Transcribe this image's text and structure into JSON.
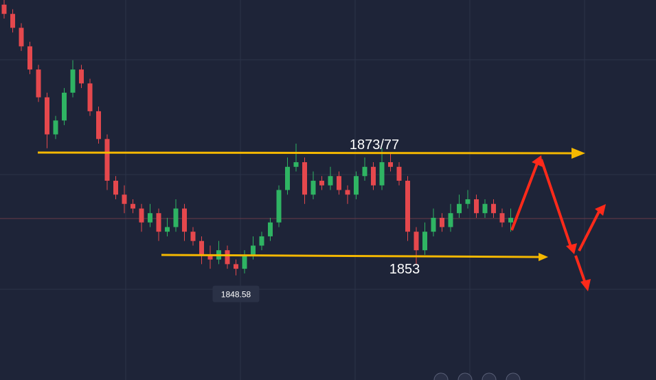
{
  "chart_data": {
    "type": "candlestick",
    "open": [
      1907,
      1905,
      1902,
      1898,
      1893,
      1887,
      1879,
      1882,
      1888,
      1893,
      1890,
      1884,
      1878,
      1869,
      1866,
      1864,
      1863,
      1860,
      1862,
      1858,
      1859,
      1863,
      1858,
      1856,
      1853,
      1852,
      1854,
      1851,
      1850,
      1853,
      1855,
      1857,
      1860,
      1867,
      1872,
      1873,
      1866,
      1869,
      1868,
      1870,
      1867,
      1866,
      1870,
      1872,
      1868,
      1873,
      1872,
      1869,
      1858,
      1854,
      1858,
      1861,
      1859,
      1862,
      1864,
      1865,
      1862,
      1864,
      1862,
      1860
    ],
    "high": [
      1908,
      1906,
      1903,
      1899,
      1894,
      1888,
      1883,
      1889,
      1895,
      1894,
      1891,
      1885,
      1879,
      1870,
      1868,
      1865,
      1864,
      1864,
      1863,
      1861,
      1865,
      1864,
      1859,
      1857,
      1855,
      1856,
      1855,
      1852,
      1854,
      1857,
      1858,
      1861,
      1868,
      1874,
      1877,
      1874,
      1871,
      1870,
      1872,
      1871,
      1868,
      1871,
      1874,
      1873,
      1876,
      1875,
      1873,
      1870,
      1859,
      1860,
      1863,
      1862,
      1864,
      1866,
      1867,
      1866,
      1865,
      1865,
      1863,
      1863
    ],
    "low": [
      1904,
      1901,
      1897,
      1892,
      1886,
      1876,
      1878,
      1881,
      1887,
      1889,
      1883,
      1877,
      1867,
      1865,
      1862,
      1862,
      1858,
      1859,
      1856,
      1857,
      1858,
      1856,
      1855,
      1851,
      1850,
      1851,
      1850,
      1848.58,
      1849,
      1852,
      1854,
      1856,
      1859,
      1866,
      1871,
      1864,
      1865,
      1867,
      1867,
      1866,
      1864,
      1865,
      1869,
      1867,
      1867,
      1871,
      1868,
      1856,
      1851,
      1853,
      1857,
      1858,
      1858,
      1861,
      1863,
      1861,
      1861,
      1861,
      1859,
      1858
    ],
    "close": [
      1905,
      1902,
      1898,
      1893,
      1887,
      1879,
      1882,
      1888,
      1893,
      1890,
      1884,
      1878,
      1869,
      1866,
      1864,
      1863,
      1860,
      1862,
      1858,
      1859,
      1863,
      1858,
      1856,
      1853,
      1852,
      1854,
      1851,
      1850,
      1853,
      1855,
      1857,
      1860,
      1867,
      1872,
      1873,
      1866,
      1869,
      1868,
      1870,
      1867,
      1866,
      1870,
      1872,
      1868,
      1873,
      1872,
      1869,
      1858,
      1854,
      1858,
      1861,
      1859,
      1862,
      1864,
      1865,
      1862,
      1864,
      1862,
      1860,
      1861
    ],
    "up_color": "#2fb463",
    "down_color": "#e5484d",
    "ylim": [
      1826,
      1908
    ],
    "annotations": [
      "1873/77",
      "1853"
    ]
  }
}
